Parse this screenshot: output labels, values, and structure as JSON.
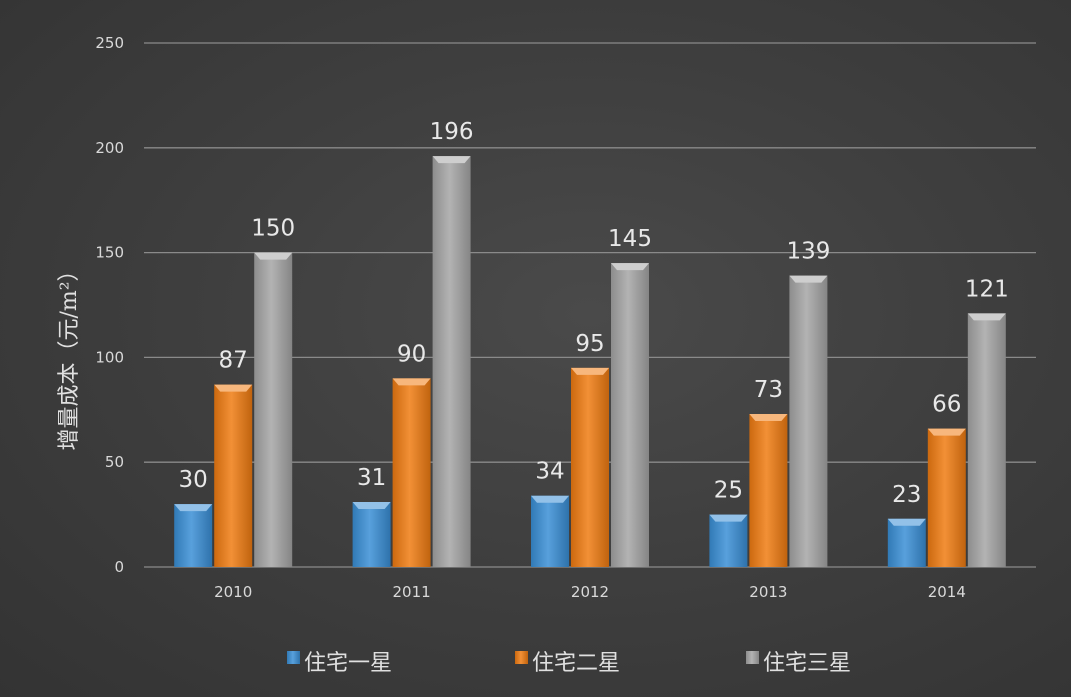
{
  "chart_data": {
    "type": "bar",
    "title": "",
    "xlabel": "",
    "ylabel": "增量成本（元/m²）",
    "ylim": [
      0,
      250
    ],
    "yticks": [
      0,
      50,
      100,
      150,
      200,
      250
    ],
    "ytick_labels": [
      "0",
      "50",
      "100",
      "150",
      "200",
      "250"
    ],
    "grid": true,
    "legend_position": "bottom",
    "categories": [
      "2010",
      "2011",
      "2012",
      "2013",
      "2014"
    ],
    "series": [
      {
        "name": "住宅一星",
        "color": "#3a8fd6",
        "values": [
          30,
          31,
          34,
          25,
          23
        ]
      },
      {
        "name": "住宅二星",
        "color": "#f07c12",
        "values": [
          87,
          90,
          95,
          73,
          66
        ]
      },
      {
        "name": "住宅三星",
        "color": "#a6a6a6",
        "values": [
          150,
          196,
          145,
          139,
          121
        ]
      }
    ],
    "data_labels": [
      [
        "30",
        "31",
        "34",
        "25",
        "23"
      ],
      [
        "87",
        "90",
        "95",
        "73",
        "66"
      ],
      [
        "150",
        "196",
        "145",
        "139",
        "121"
      ]
    ],
    "background_color": "#404040",
    "gridline_color": "#8a8a8a"
  }
}
